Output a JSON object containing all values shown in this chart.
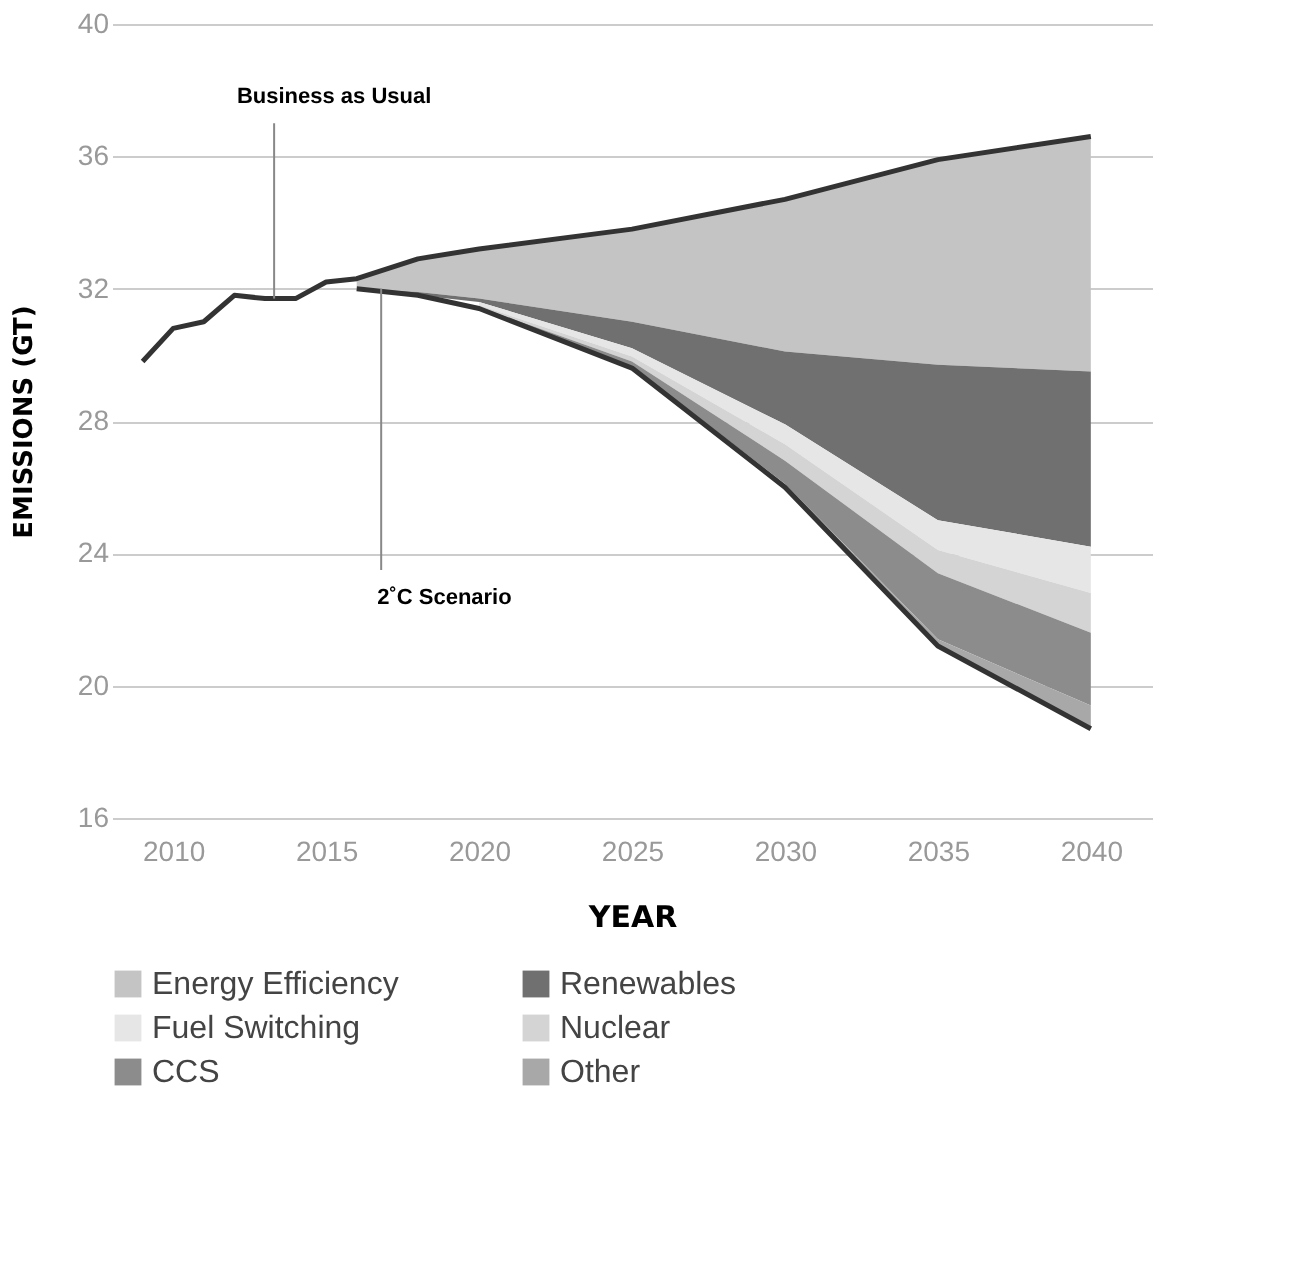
{
  "chart_data": {
    "type": "area",
    "xlabel": "YEAR",
    "ylabel": "EMISSIONS (GT)",
    "xlim": [
      2008,
      2042
    ],
    "ylim": [
      16,
      40
    ],
    "xticks": [
      2010,
      2015,
      2020,
      2025,
      2030,
      2035,
      2040
    ],
    "yticks": [
      16,
      20,
      24,
      28,
      32,
      36,
      40
    ],
    "grid": "y",
    "legend": "bottom",
    "annotations": [
      {
        "text": "Business as Usual",
        "x": 2013.3,
        "y": 31.7
      },
      {
        "text": "2˚C Scenario",
        "x": 2016.8,
        "y": 32.0
      }
    ],
    "series": [
      {
        "name": "Energy Efficiency",
        "color": "#c4c4c4",
        "x": [
          2016,
          2018,
          2020,
          2025,
          2030,
          2035,
          2040
        ],
        "values": [
          32.3,
          32.9,
          33.2,
          33.8,
          34.7,
          35.9,
          36.6
        ]
      },
      {
        "name": "Renewables",
        "color": "#707070",
        "x": [
          2016,
          2018,
          2020,
          2025,
          2030,
          2035,
          2040
        ],
        "values": [
          32.0,
          31.9,
          31.7,
          31.0,
          30.1,
          29.7,
          29.5
        ]
      },
      {
        "name": "Fuel Switching",
        "color": "#e6e6e6",
        "x": [
          2020,
          2025,
          2030,
          2035,
          2040
        ],
        "values": [
          31.6,
          30.2,
          27.9,
          25.0,
          24.2
        ]
      },
      {
        "name": "Nuclear",
        "color": "#d4d4d4",
        "x": [
          2020,
          2025,
          2030,
          2035,
          2040
        ],
        "values": [
          31.5,
          29.95,
          27.3,
          24.1,
          22.8
        ]
      },
      {
        "name": "CCS",
        "color": "#8c8c8c",
        "x": [
          2020,
          2025,
          2030,
          2035,
          2040
        ],
        "values": [
          31.45,
          29.8,
          26.8,
          23.4,
          21.6
        ]
      },
      {
        "name": "Other",
        "color": "#a8a8a8",
        "x": [
          2025,
          2030,
          2035,
          2040
        ],
        "values": [
          29.65,
          26.1,
          21.4,
          19.4
        ]
      },
      {
        "type": "line",
        "color": "#333333",
        "x": [
          2009,
          2010,
          2011,
          2012,
          2013,
          2014,
          2015,
          2016,
          2018,
          2020,
          2025,
          2030,
          2035,
          2040
        ],
        "values": [
          29.8,
          30.8,
          31.0,
          31.8,
          31.7,
          31.7,
          32.2,
          32.3,
          32.9,
          33.2,
          33.8,
          34.7,
          35.9,
          36.6
        ]
      },
      {
        "type": "line",
        "color": "#333333",
        "x": [
          2016,
          2018,
          2020,
          2025,
          2030,
          2035,
          2040
        ],
        "values": [
          32.0,
          31.8,
          31.4,
          29.6,
          26.0,
          21.2,
          18.7
        ]
      }
    ]
  }
}
